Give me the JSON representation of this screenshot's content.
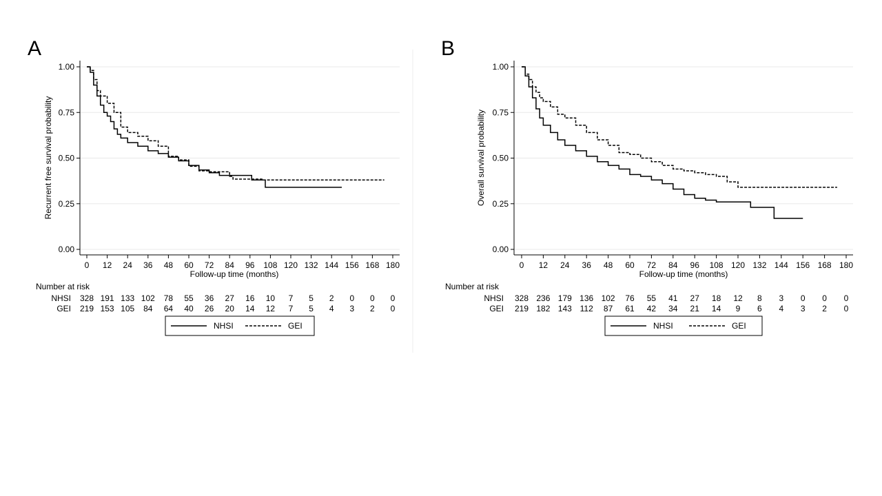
{
  "chart_data": [
    {
      "panel": "A",
      "type": "line",
      "xlabel": "Follow-up time (months)",
      "ylabel": "Recurrent free survival probability",
      "xlim": [
        0,
        180
      ],
      "ylim": [
        0,
        1
      ],
      "xticks": [
        "0",
        "12",
        "24",
        "36",
        "48",
        "60",
        "72",
        "84",
        "96",
        "108",
        "120",
        "132",
        "144",
        "156",
        "168",
        "180"
      ],
      "yticks": [
        "0.00",
        "0.25",
        "0.50",
        "0.75",
        "1.00"
      ],
      "grid": true,
      "series": [
        {
          "name": "NHSI",
          "style": "solid",
          "points": [
            [
              0,
              1.0
            ],
            [
              2,
              0.97
            ],
            [
              4,
              0.9
            ],
            [
              6,
              0.84
            ],
            [
              8,
              0.79
            ],
            [
              10,
              0.75
            ],
            [
              12,
              0.73
            ],
            [
              14,
              0.7
            ],
            [
              16,
              0.66
            ],
            [
              18,
              0.63
            ],
            [
              20,
              0.61
            ],
            [
              24,
              0.585
            ],
            [
              30,
              0.565
            ],
            [
              36,
              0.54
            ],
            [
              42,
              0.525
            ],
            [
              48,
              0.505
            ],
            [
              54,
              0.485
            ],
            [
              60,
              0.46
            ],
            [
              66,
              0.435
            ],
            [
              72,
              0.42
            ],
            [
              78,
              0.405
            ],
            [
              84,
              0.405
            ],
            [
              90,
              0.405
            ],
            [
              96,
              0.405
            ],
            [
              97,
              0.38
            ],
            [
              104,
              0.38
            ],
            [
              105,
              0.34
            ],
            [
              150,
              0.34
            ]
          ]
        },
        {
          "name": "GEI",
          "style": "dashed",
          "points": [
            [
              0,
              1.0
            ],
            [
              2,
              0.98
            ],
            [
              4,
              0.93
            ],
            [
              6,
              0.87
            ],
            [
              8,
              0.84
            ],
            [
              12,
              0.8
            ],
            [
              16,
              0.75
            ],
            [
              20,
              0.67
            ],
            [
              24,
              0.64
            ],
            [
              30,
              0.62
            ],
            [
              36,
              0.595
            ],
            [
              42,
              0.565
            ],
            [
              48,
              0.51
            ],
            [
              54,
              0.49
            ],
            [
              60,
              0.455
            ],
            [
              66,
              0.43
            ],
            [
              72,
              0.425
            ],
            [
              80,
              0.425
            ],
            [
              84,
              0.4
            ],
            [
              86,
              0.385
            ],
            [
              96,
              0.385
            ],
            [
              103,
              0.38
            ],
            [
              175,
              0.38
            ]
          ]
        }
      ],
      "risk_table": {
        "header": "Number at risk",
        "rows": [
          {
            "label": "NHSI",
            "values": [
              "328",
              "191",
              "133",
              "102",
              "78",
              "55",
              "36",
              "27",
              "16",
              "10",
              "7",
              "5",
              "2",
              "0",
              "0",
              "0"
            ]
          },
          {
            "label": "GEI",
            "values": [
              "219",
              "153",
              "105",
              "84",
              "64",
              "40",
              "26",
              "20",
              "14",
              "12",
              "7",
              "5",
              "4",
              "3",
              "2",
              "0"
            ]
          }
        ]
      },
      "legend": [
        {
          "label": "NHSI",
          "style": "solid"
        },
        {
          "label": "GEI",
          "style": "dashed"
        }
      ]
    },
    {
      "panel": "B",
      "type": "line",
      "xlabel": "Follow-up time (months)",
      "ylabel": "Overall survival probability",
      "xlim": [
        0,
        180
      ],
      "ylim": [
        0,
        1
      ],
      "xticks": [
        "0",
        "12",
        "24",
        "36",
        "48",
        "60",
        "72",
        "84",
        "96",
        "108",
        "120",
        "132",
        "144",
        "156",
        "168",
        "180"
      ],
      "yticks": [
        "0.00",
        "0.25",
        "0.50",
        "0.75",
        "1.00"
      ],
      "grid": true,
      "series": [
        {
          "name": "NHSI",
          "style": "solid",
          "points": [
            [
              0,
              1.0
            ],
            [
              2,
              0.95
            ],
            [
              4,
              0.89
            ],
            [
              6,
              0.83
            ],
            [
              8,
              0.77
            ],
            [
              10,
              0.72
            ],
            [
              12,
              0.68
            ],
            [
              16,
              0.64
            ],
            [
              20,
              0.6
            ],
            [
              24,
              0.57
            ],
            [
              30,
              0.54
            ],
            [
              36,
              0.51
            ],
            [
              42,
              0.48
            ],
            [
              48,
              0.46
            ],
            [
              54,
              0.44
            ],
            [
              60,
              0.41
            ],
            [
              66,
              0.4
            ],
            [
              72,
              0.38
            ],
            [
              78,
              0.36
            ],
            [
              84,
              0.33
            ],
            [
              90,
              0.3
            ],
            [
              96,
              0.28
            ],
            [
              102,
              0.27
            ],
            [
              108,
              0.26
            ],
            [
              126,
              0.26
            ],
            [
              127,
              0.23
            ],
            [
              139,
              0.23
            ],
            [
              140,
              0.17
            ],
            [
              156,
              0.17
            ]
          ]
        },
        {
          "name": "GEI",
          "style": "dashed",
          "points": [
            [
              0,
              1.0
            ],
            [
              2,
              0.96
            ],
            [
              4,
              0.93
            ],
            [
              6,
              0.89
            ],
            [
              8,
              0.86
            ],
            [
              10,
              0.83
            ],
            [
              12,
              0.81
            ],
            [
              16,
              0.78
            ],
            [
              20,
              0.74
            ],
            [
              24,
              0.72
            ],
            [
              30,
              0.68
            ],
            [
              36,
              0.64
            ],
            [
              42,
              0.6
            ],
            [
              48,
              0.57
            ],
            [
              54,
              0.53
            ],
            [
              60,
              0.52
            ],
            [
              66,
              0.5
            ],
            [
              72,
              0.48
            ],
            [
              78,
              0.46
            ],
            [
              84,
              0.44
            ],
            [
              90,
              0.43
            ],
            [
              96,
              0.42
            ],
            [
              102,
              0.41
            ],
            [
              108,
              0.4
            ],
            [
              114,
              0.37
            ],
            [
              120,
              0.34
            ],
            [
              175,
              0.34
            ]
          ]
        }
      ],
      "risk_table": {
        "header": "Number at risk",
        "rows": [
          {
            "label": "NHSI",
            "values": [
              "328",
              "236",
              "179",
              "136",
              "102",
              "76",
              "55",
              "41",
              "27",
              "18",
              "12",
              "8",
              "3",
              "0",
              "0",
              "0"
            ]
          },
          {
            "label": "GEI",
            "values": [
              "219",
              "182",
              "143",
              "112",
              "87",
              "61",
              "42",
              "34",
              "21",
              "14",
              "9",
              "6",
              "4",
              "3",
              "2",
              "0"
            ]
          }
        ]
      },
      "legend": [
        {
          "label": "NHSI",
          "style": "solid"
        },
        {
          "label": "GEI",
          "style": "dashed"
        }
      ]
    }
  ]
}
